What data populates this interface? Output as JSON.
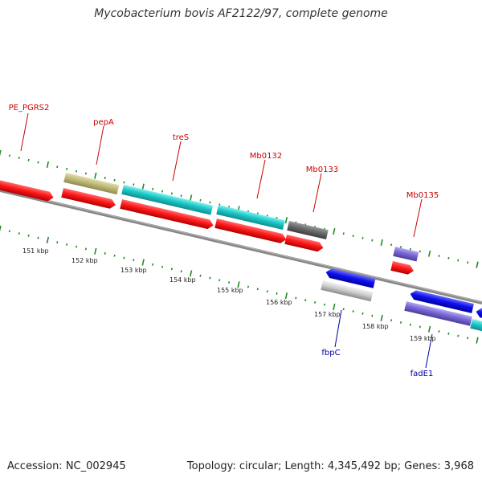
{
  "title": "Mycobacterium bovis AF2122/97, complete genome",
  "footer": {
    "accession": "Accession: NC_002945",
    "topology": "Topology: circular; Length: 4,345,492 bp; Genes: 3,968"
  },
  "colors": {
    "cds_red": "#ff1a1a",
    "backbone": "#888888",
    "tick": "#228b22",
    "label_red": "#cc0000",
    "label_blue": "#0000aa"
  },
  "kbp_labels": [
    "151 kbp",
    "152 kbp",
    "153 kbp",
    "154 kbp",
    "155 kbp",
    "156 kbp",
    "157 kbp",
    "158 kbp",
    "159 kbp"
  ],
  "gene_labels": {
    "top": [
      "PE_PGRS2",
      "pepA",
      "treS",
      "Mb0132",
      "Mb0133",
      "Mb0135"
    ],
    "bottom": [
      "fbpC",
      "fadE1"
    ]
  }
}
